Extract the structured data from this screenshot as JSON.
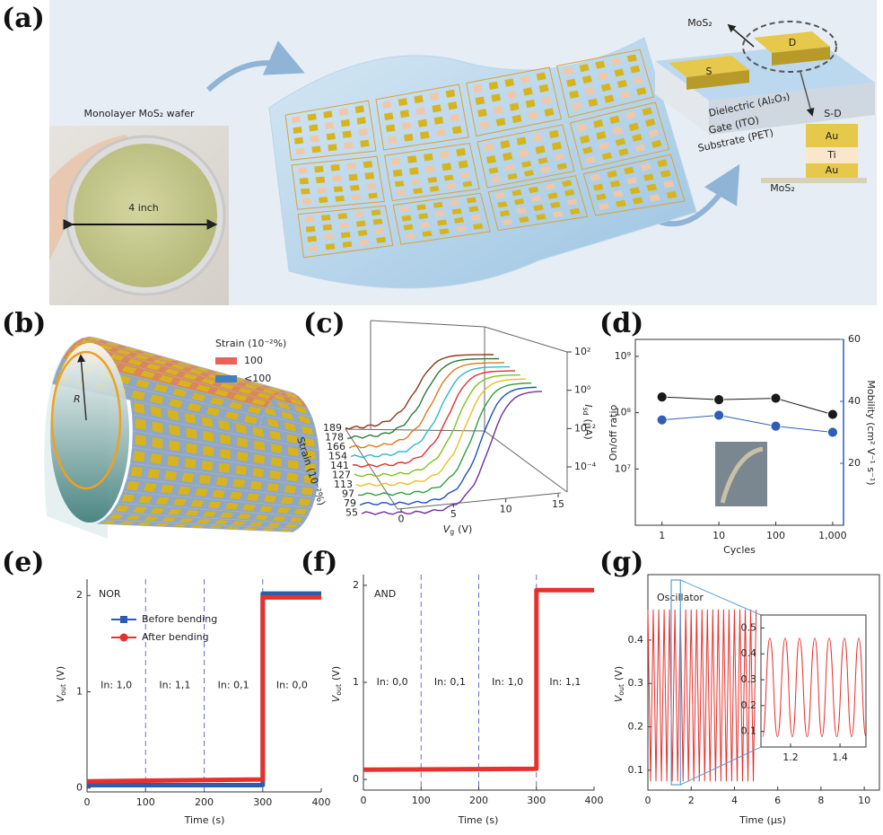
{
  "figure": {
    "panel_labels": [
      "(a)",
      "(b)",
      "(c)",
      "(d)",
      "(e)",
      "(f)",
      "(g)"
    ]
  },
  "panel_a": {
    "wafer_title": "Monolayer MoS₂ wafer",
    "wafer_size": "4 inch",
    "arrow_label": "MoS₂",
    "source": "S",
    "drain": "D",
    "dielectric": "Dielectric (Al₂O₃)",
    "gate": "Gate (ITO)",
    "substrate": "Substrate (PET)",
    "contact": "S-D",
    "stack": [
      "Au",
      "Ti",
      "Au"
    ],
    "base": "MoS₂"
  },
  "panel_b": {
    "legend_title": "Strain (10⁻²%)",
    "legend": [
      {
        "name": "100",
        "color": "#e8645a"
      },
      {
        "name": "<100",
        "color": "#3f7fc4"
      }
    ],
    "radius": "R"
  },
  "panel_c": {
    "strain_values": [
      189,
      178,
      166,
      154,
      141,
      127,
      113,
      97,
      79,
      55
    ],
    "xticks": [
      0,
      5,
      10,
      15
    ],
    "zticks": [
      {
        "value": 100,
        "label": "10²"
      },
      {
        "value": 1,
        "label": "10⁰"
      },
      {
        "value": 0.01,
        "label": "10⁻²"
      },
      {
        "value": 0.0001,
        "label": "10⁻⁴"
      }
    ],
    "xlabel": {
      "symbol": "V",
      "sub": "g",
      "unit": "(V)"
    },
    "zlabel": {
      "symbol": "I",
      "sub": "sd",
      "unit": "(μA)"
    },
    "ylabel": "Strain (10⁻²%)"
  },
  "chart_data": [
    {
      "type": "line",
      "markers": true,
      "xscale": "log",
      "yscale": "log",
      "x": [
        1,
        10,
        100,
        1000
      ],
      "series": [
        {
          "color": "#1a1a1a",
          "values": [
            190000000,
            170000000,
            180000000,
            93000000
          ]
        },
        {
          "color": "#2f5fb5",
          "axis": "y2",
          "values": [
            34,
            35.5,
            32,
            30
          ]
        }
      ],
      "xlim": [
        0.34,
        1550
      ],
      "xticks": [
        1,
        10,
        100,
        {
          "value": 1000,
          "label": "1,000"
        }
      ],
      "ylim": [
        1000000,
        2000000000
      ],
      "yticks": [
        {
          "value": 10000000,
          "label": "10⁷"
        },
        {
          "value": 100000000,
          "label": "10⁸"
        },
        {
          "value": 1000000000,
          "label": "10⁹"
        }
      ],
      "y2lim": [
        0,
        60
      ],
      "y2ticks": [
        20,
        40,
        60
      ],
      "xlabel": "Cycles",
      "ylabel": "On/off ratio",
      "y2label": "Mobility (cm² V⁻¹ s⁻¹)"
    },
    {
      "type": "line",
      "title": "NOR",
      "x": [
        0,
        300,
        300,
        400
      ],
      "series": [
        {
          "name": "Before bending",
          "color": "#2a5db0",
          "marker": "square",
          "values": [
            0.03,
            0.03,
            2.02,
            2.02
          ]
        },
        {
          "name": "After bending",
          "color": "#e8302c",
          "marker": "circle",
          "values": [
            0.07,
            0.09,
            1.98,
            1.98
          ]
        }
      ],
      "xlim": [
        0,
        400
      ],
      "xticks": [
        0,
        100,
        200,
        300,
        400
      ],
      "ylim": [
        -0.04,
        2.17
      ],
      "yticks": [
        0,
        1,
        2
      ],
      "vlines": [
        100,
        200,
        300
      ],
      "region_labels": [
        "In: 1,0",
        "In: 1,1",
        "In: 0,1",
        "In: 0,0"
      ],
      "legend": "upper left",
      "xlabel": "Time (s)",
      "ylabel": {
        "symbol": "V",
        "sub": "out",
        "unit": "(V)"
      }
    },
    {
      "type": "line",
      "title": "AND",
      "x": [
        0,
        300,
        300,
        400
      ],
      "series": [
        {
          "color": "#e8302c",
          "values": [
            0.1,
            0.11,
            1.95,
            1.95
          ]
        }
      ],
      "xlim": [
        0,
        400
      ],
      "xticks": [
        0,
        100,
        200,
        300,
        400
      ],
      "ylim": [
        -0.11,
        2.11
      ],
      "yticks": [
        0,
        1,
        2
      ],
      "vlines": [
        100,
        200,
        300
      ],
      "region_labels": [
        "In: 0,0",
        "In: 0,1",
        "In: 1,0",
        "In: 1,1"
      ],
      "xlabel": "Time (s)",
      "ylabel": {
        "symbol": "V",
        "sub": "out",
        "unit": "(V)"
      }
    },
    {
      "type": "line",
      "title": "Oscillator",
      "color": "#e8302c",
      "x": [
        0,
        0.125,
        0.25,
        0.375,
        0.5,
        0.625,
        0.75,
        0.875,
        1,
        1.125,
        1.25,
        1.375,
        1.5,
        1.625,
        1.75,
        1.875,
        2,
        2.125,
        2.25,
        2.375,
        2.5,
        2.625,
        2.75,
        2.875,
        3,
        3.125,
        3.25,
        3.375,
        3.5,
        3.625,
        3.75,
        3.875,
        4,
        4.125,
        4.25,
        4.375,
        4.5,
        4.625,
        4.75,
        4.875,
        5
      ],
      "values": [
        0.47,
        0.075,
        0.47,
        0.075,
        0.47,
        0.075,
        0.47,
        0.075,
        0.47,
        0.075,
        0.47,
        0.075,
        0.47,
        0.075,
        0.47,
        0.075,
        0.47,
        0.075,
        0.47,
        0.075,
        0.47,
        0.075,
        0.47,
        0.075,
        0.47,
        0.075,
        0.47,
        0.075,
        0.47,
        0.075,
        0.47,
        0.075,
        0.47,
        0.075,
        0.47,
        0.075,
        0.47,
        0.075,
        0.47,
        0.075,
        0.47
      ],
      "xlim": [
        0,
        10.7
      ],
      "xticks": [
        0,
        2,
        4,
        6,
        8,
        10
      ],
      "ylim": [
        0.054,
        0.551
      ],
      "yticks": [
        0.1,
        0.2,
        0.3,
        0.4
      ],
      "xlabel": "Time (μs)",
      "ylabel": {
        "symbol": "V",
        "sub": "out",
        "unit": "(V)"
      },
      "inset": {
        "x": [
          1.086,
          1.116,
          1.147,
          1.178,
          1.207,
          1.236,
          1.267,
          1.298,
          1.327,
          1.356,
          1.387,
          1.418,
          1.447,
          1.476,
          1.505
        ],
        "values": [
          0.08,
          0.46,
          0.08,
          0.46,
          0.08,
          0.46,
          0.08,
          0.46,
          0.08,
          0.46,
          0.08,
          0.46,
          0.08,
          0.46,
          0.08
        ],
        "xlim": [
          1.08,
          1.505
        ],
        "xticks": [
          1.2,
          1.4
        ],
        "ylim": [
          0.04,
          0.55
        ],
        "yticks": [
          0.1,
          0.2,
          0.3,
          0.4,
          0.5
        ]
      }
    }
  ]
}
